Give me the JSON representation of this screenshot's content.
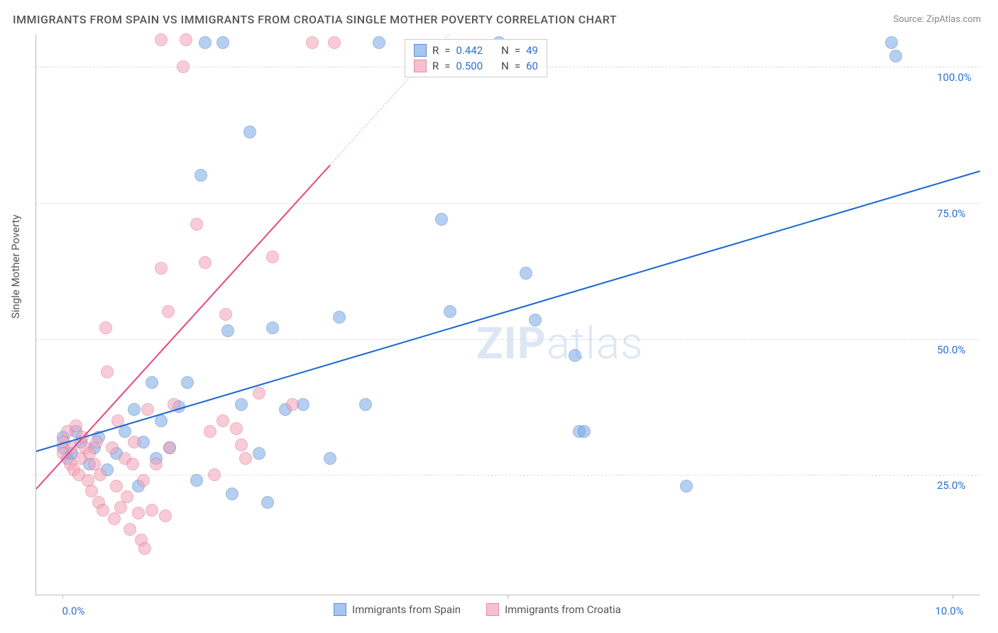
{
  "title": "IMMIGRANTS FROM SPAIN VS IMMIGRANTS FROM CROATIA SINGLE MOTHER POVERTY CORRELATION CHART",
  "source": "Source: ZipAtlas.com",
  "watermark_bold": "ZIP",
  "watermark_rest": "atlas",
  "ylabel": "Single Mother Poverty",
  "chart": {
    "type": "scatter",
    "xlim": [
      -0.3,
      10.3
    ],
    "ylim": [
      3,
      106
    ],
    "x_ticks": [
      0.0,
      5.0,
      10.0
    ],
    "x_tick_labels": [
      "0.0%",
      "",
      "10.0%"
    ],
    "y_ticks": [
      25.0,
      50.0,
      75.0,
      100.0
    ],
    "y_tick_labels": [
      "25.0%",
      "50.0%",
      "75.0%",
      "100.0%"
    ],
    "grid_color": "#dddddd",
    "axis_color": "#bbbbbb",
    "background": "#ffffff",
    "marker_radius": 9,
    "marker_opacity": 0.55,
    "series": [
      {
        "id": "spain",
        "label": "Immigrants from Spain",
        "color_fill": "#7aa8e6",
        "color_stroke": "#4a7fc9",
        "line_color": "#1967d2",
        "R": "0.442",
        "N": "49",
        "trend": {
          "x1": -0.3,
          "y1": 29.5,
          "x2": 10.3,
          "y2": 81.0,
          "extrapolate_from_x": null
        },
        "points": [
          [
            0.0,
            32
          ],
          [
            0.0,
            30
          ],
          [
            0.05,
            28
          ],
          [
            0.1,
            29
          ],
          [
            0.15,
            33
          ],
          [
            0.2,
            31
          ],
          [
            0.3,
            27
          ],
          [
            0.35,
            30
          ],
          [
            0.4,
            32
          ],
          [
            0.5,
            26
          ],
          [
            0.6,
            29
          ],
          [
            0.7,
            33
          ],
          [
            0.8,
            37
          ],
          [
            0.85,
            23
          ],
          [
            0.9,
            31
          ],
          [
            1.0,
            42
          ],
          [
            1.05,
            28
          ],
          [
            1.1,
            35
          ],
          [
            1.2,
            30
          ],
          [
            1.3,
            37.5
          ],
          [
            1.4,
            42
          ],
          [
            1.5,
            24
          ],
          [
            1.55,
            80
          ],
          [
            1.6,
            104.5
          ],
          [
            1.8,
            104.5
          ],
          [
            1.85,
            51.5
          ],
          [
            1.9,
            21.5
          ],
          [
            2.0,
            38
          ],
          [
            2.1,
            88
          ],
          [
            2.2,
            29
          ],
          [
            2.3,
            20
          ],
          [
            2.35,
            52
          ],
          [
            2.5,
            37
          ],
          [
            2.7,
            38
          ],
          [
            3.0,
            28
          ],
          [
            3.1,
            54
          ],
          [
            3.4,
            38
          ],
          [
            3.55,
            104.5
          ],
          [
            4.25,
            72
          ],
          [
            4.35,
            55
          ],
          [
            4.9,
            104.5
          ],
          [
            5.2,
            62
          ],
          [
            5.3,
            53.5
          ],
          [
            5.8,
            33
          ],
          [
            5.85,
            33
          ],
          [
            5.75,
            47
          ],
          [
            7.0,
            23
          ],
          [
            9.3,
            104.5
          ],
          [
            9.35,
            102
          ]
        ]
      },
      {
        "id": "croatia",
        "label": "Immigrants from Croatia",
        "color_fill": "#f4a4b8",
        "color_stroke": "#e16f8f",
        "line_color": "#e6487a",
        "R": "0.500",
        "N": "60",
        "trend": {
          "x1": -0.3,
          "y1": 22.5,
          "x2": 3.0,
          "y2": 82.0,
          "extrapolate_from_x": 3.0
        },
        "points": [
          [
            0.0,
            31
          ],
          [
            0.0,
            29
          ],
          [
            0.05,
            33
          ],
          [
            0.08,
            27
          ],
          [
            0.1,
            30
          ],
          [
            0.12,
            26
          ],
          [
            0.15,
            34
          ],
          [
            0.18,
            25
          ],
          [
            0.2,
            28
          ],
          [
            0.22,
            32
          ],
          [
            0.25,
            30
          ],
          [
            0.28,
            24
          ],
          [
            0.3,
            29
          ],
          [
            0.32,
            22
          ],
          [
            0.35,
            27
          ],
          [
            0.38,
            31
          ],
          [
            0.4,
            20
          ],
          [
            0.42,
            25
          ],
          [
            0.45,
            18.5
          ],
          [
            0.48,
            52
          ],
          [
            0.5,
            44
          ],
          [
            0.55,
            30
          ],
          [
            0.58,
            17
          ],
          [
            0.6,
            23
          ],
          [
            0.62,
            35
          ],
          [
            0.65,
            19
          ],
          [
            0.7,
            28
          ],
          [
            0.72,
            21
          ],
          [
            0.75,
            15
          ],
          [
            0.78,
            27
          ],
          [
            0.8,
            31
          ],
          [
            0.85,
            18
          ],
          [
            0.88,
            13
          ],
          [
            0.9,
            24
          ],
          [
            0.92,
            11.5
          ],
          [
            0.95,
            37
          ],
          [
            1.0,
            18.5
          ],
          [
            1.05,
            27
          ],
          [
            1.1,
            63
          ],
          [
            1.1,
            105
          ],
          [
            1.15,
            17.5
          ],
          [
            1.18,
            55
          ],
          [
            1.2,
            30
          ],
          [
            1.25,
            38
          ],
          [
            1.35,
            100
          ],
          [
            1.38,
            105
          ],
          [
            1.5,
            71
          ],
          [
            1.6,
            64
          ],
          [
            1.65,
            33
          ],
          [
            1.7,
            25
          ],
          [
            1.8,
            35
          ],
          [
            1.83,
            54.5
          ],
          [
            1.95,
            33.5
          ],
          [
            2.0,
            30.5
          ],
          [
            2.05,
            28
          ],
          [
            2.2,
            40
          ],
          [
            2.35,
            65
          ],
          [
            2.58,
            38
          ],
          [
            2.8,
            104.5
          ],
          [
            3.05,
            104.5
          ]
        ]
      }
    ]
  },
  "legend_top": {
    "R_label": "R",
    "N_label": "N",
    "eq": "="
  },
  "swatch": {
    "spain_fill": "#a8c5f0",
    "spain_border": "#5c8fd6",
    "croatia_fill": "#f6c0cf",
    "croatia_border": "#e68ca6"
  }
}
